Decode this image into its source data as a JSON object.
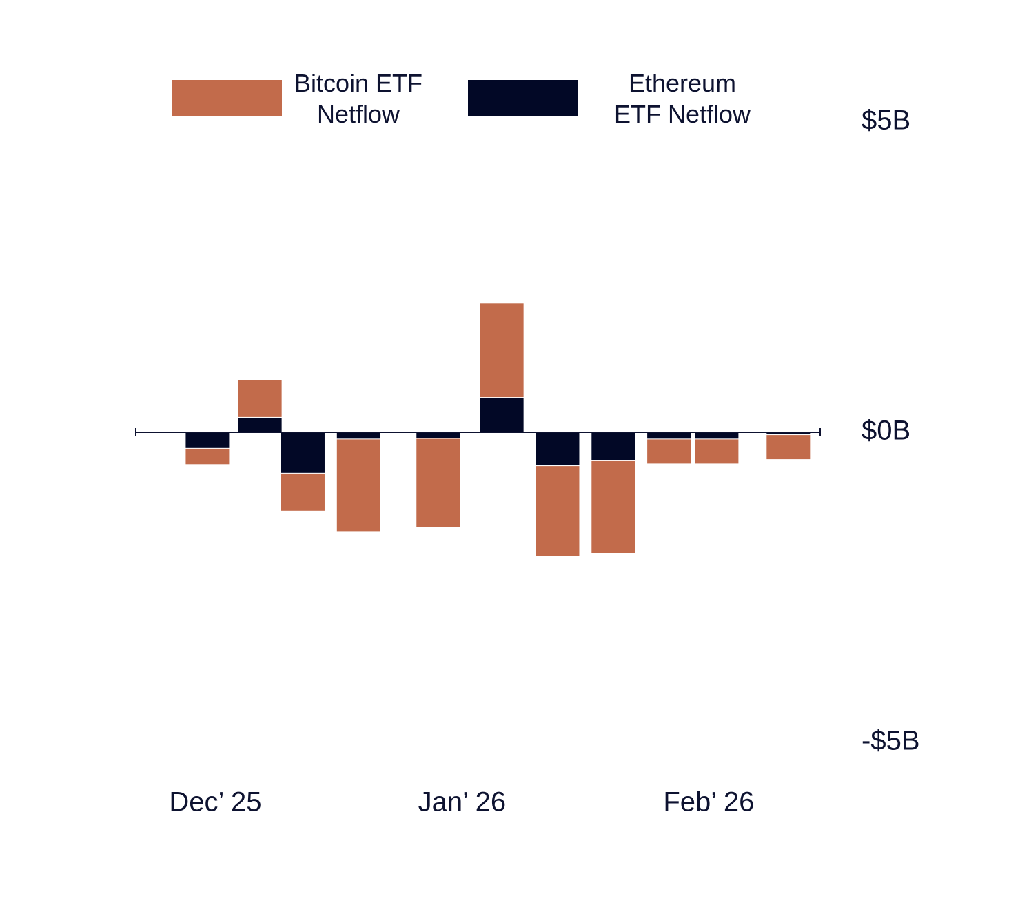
{
  "chart_data": {
    "type": "bar",
    "stacked": true,
    "x": [
      -1,
      5.6,
      11,
      18,
      28,
      36,
      43,
      50,
      57,
      63,
      72
    ],
    "xlim": [
      -10,
      76
    ],
    "xticks": [
      {
        "value": 0,
        "label": "Dec’ 25"
      },
      {
        "value": 31,
        "label": "Jan’ 26"
      },
      {
        "value": 62,
        "label": "Feb’ 26"
      }
    ],
    "ylim": [
      -5,
      5
    ],
    "yticks": [
      {
        "value": 5,
        "label": "$5B"
      },
      {
        "value": 0,
        "label": "$0B"
      },
      {
        "value": -5,
        "label": "-$5B"
      }
    ],
    "series": [
      {
        "name": "Bitcoin ETF Netflow",
        "color": "#c26b4b",
        "values": [
          -0.26,
          0.61,
          -0.61,
          -1.5,
          -1.43,
          1.52,
          -1.46,
          -1.49,
          -0.4,
          -0.4,
          -0.4
        ]
      },
      {
        "name": "Ethereum ETF Netflow",
        "color": "#020826",
        "values": [
          -0.26,
          0.24,
          -0.66,
          -0.11,
          -0.1,
          0.56,
          -0.54,
          -0.46,
          -0.11,
          -0.11,
          -0.04
        ]
      }
    ]
  }
}
